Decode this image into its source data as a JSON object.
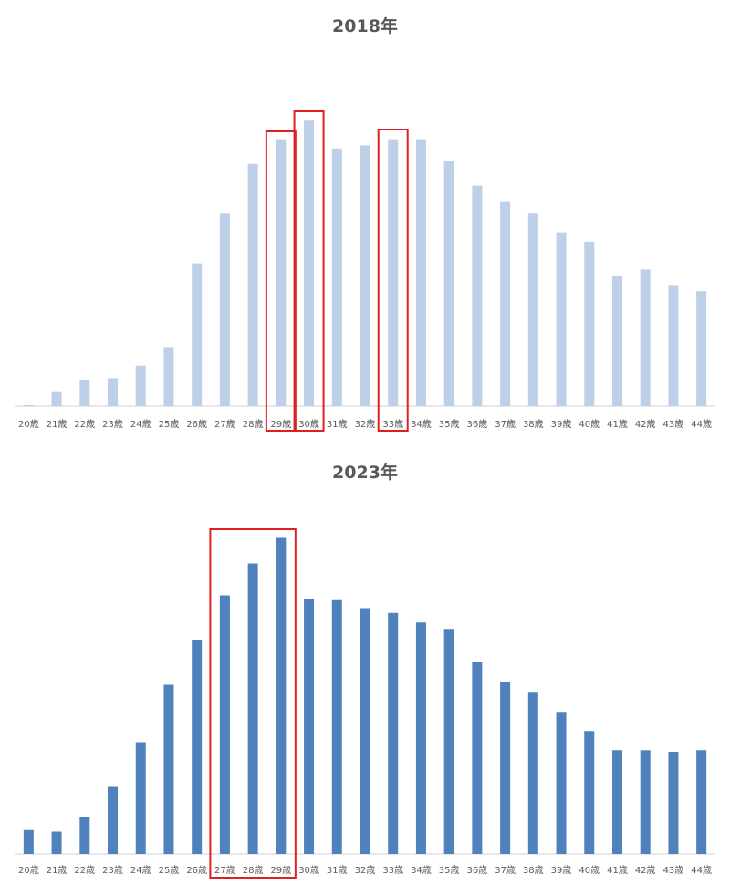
{
  "chart_data": [
    {
      "type": "bar",
      "title": "2018年",
      "xlabel": "",
      "ylabel": "",
      "categories": [
        "20歳",
        "21歳",
        "22歳",
        "23歳",
        "24歳",
        "25歳",
        "26歳",
        "27歳",
        "28歳",
        "29歳",
        "30歳",
        "31歳",
        "32歳",
        "33歳",
        "34歳",
        "35歳",
        "36歳",
        "37歳",
        "38歳",
        "39歳",
        "40歳",
        "41歳",
        "42歳",
        "43歳",
        "44歳"
      ],
      "values": [
        0.3,
        4.5,
        8.5,
        9,
        13,
        19,
        46,
        62,
        78,
        86,
        92,
        83,
        84,
        86,
        86,
        79,
        71,
        66,
        62,
        56,
        53,
        42,
        44,
        39,
        37
      ],
      "ylim": [
        0,
        100
      ],
      "grid": false,
      "color": "#bdd0e7",
      "highlights": [
        [
          "29歳"
        ],
        [
          "30歳"
        ],
        [
          "33歳"
        ]
      ]
    },
    {
      "type": "bar",
      "title": "2023年",
      "xlabel": "",
      "ylabel": "",
      "categories": [
        "20歳",
        "21歳",
        "22歳",
        "23歳",
        "24歳",
        "25歳",
        "26歳",
        "27歳",
        "28歳",
        "29歳",
        "30歳",
        "31歳",
        "32歳",
        "33歳",
        "34歳",
        "35歳",
        "36歳",
        "37歳",
        "38歳",
        "39歳",
        "40歳",
        "41歳",
        "42歳",
        "43歳",
        "44歳"
      ],
      "values": [
        7.5,
        7,
        11.5,
        21,
        35,
        53,
        67,
        81,
        91,
        99,
        80,
        79.5,
        77,
        75.5,
        72.5,
        70.5,
        60,
        54,
        50.5,
        44.5,
        38.5,
        32.5,
        32.5,
        32,
        32.5
      ],
      "ylim": [
        0,
        100
      ],
      "grid": false,
      "color": "#4f81bd",
      "highlights": [
        [
          "27歳",
          "28歳",
          "29歳"
        ]
      ]
    }
  ]
}
